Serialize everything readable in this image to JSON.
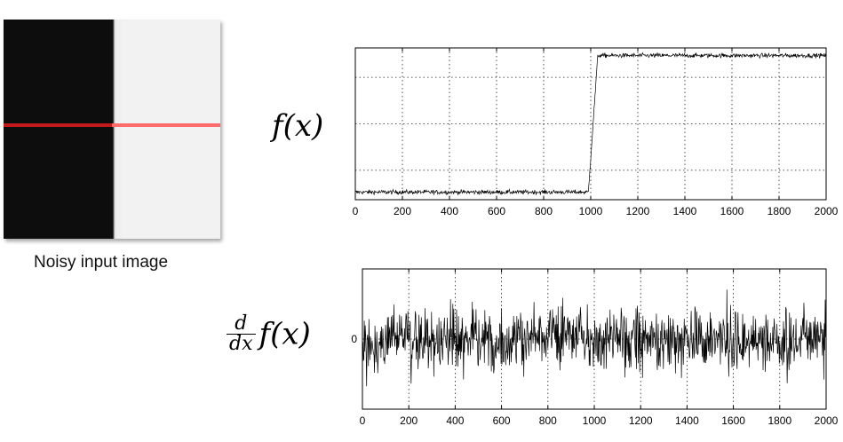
{
  "image": {
    "caption": "Noisy input image",
    "dark_color": "#0d0d0d",
    "light_color": "#f2f2f2",
    "scanline_color": "#ff6a6a",
    "scanline_dark_color": "#c21a1a"
  },
  "equations": {
    "f_label": "f(x)",
    "deriv_num": "d",
    "deriv_den": "dx",
    "deriv_fx": "f(x)"
  },
  "chart_data": [
    {
      "type": "line",
      "title": "",
      "xlabel": "",
      "ylabel": "",
      "xlim": [
        0,
        2000
      ],
      "ylim": [
        0,
        1
      ],
      "xticks": [
        "0",
        "200",
        "400",
        "600",
        "800",
        "1000",
        "1200",
        "1400",
        "1600",
        "1800",
        "2000"
      ],
      "grid": true,
      "series": [
        {
          "x": [
            0,
            990,
            1030,
            2000
          ],
          "y": [
            0.05,
            0.05,
            0.95,
            0.95
          ],
          "noise": 0.025
        }
      ]
    },
    {
      "type": "line",
      "title": "",
      "xlabel": "",
      "ylabel": "",
      "xlim": [
        0,
        2000
      ],
      "ylim": [
        -1,
        1
      ],
      "xticks": [
        "0",
        "200",
        "400",
        "600",
        "800",
        "1000",
        "1200",
        "1400",
        "1600",
        "1800",
        "2000"
      ],
      "yticks": [
        "0"
      ],
      "grid": true,
      "series": [
        {
          "x": [
            0,
            2000
          ],
          "y": [
            0,
            0
          ],
          "noise": 0.45
        }
      ]
    }
  ]
}
